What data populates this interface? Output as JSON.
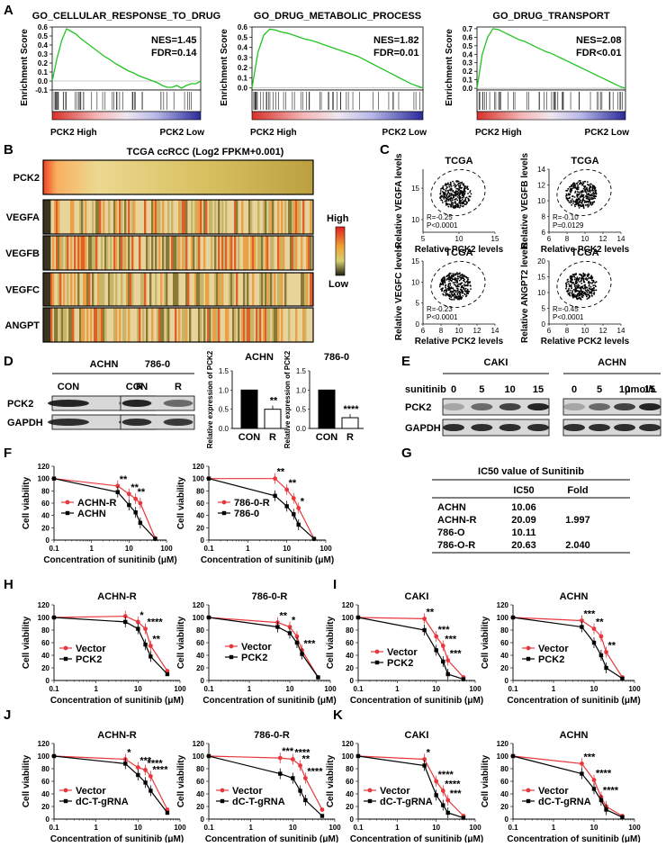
{
  "panel_labels": {
    "A": "A",
    "B": "B",
    "C": "C",
    "D": "D",
    "E": "E",
    "F": "F",
    "G": "G",
    "H": "H",
    "I": "I",
    "J": "J",
    "K": "K"
  },
  "gsea": [
    {
      "title": "GO_CELLULAR_RESPONSE_TO_DRUG",
      "nes": "NES=1.45",
      "fdr": "FDR=0.14",
      "yticks": [
        "0.6",
        "0.5",
        "0.4",
        "0.3",
        "0.2",
        "0.1",
        "0.0",
        "-0.1"
      ],
      "ymax": 0.6,
      "ymin": -0.1,
      "es": [
        0.0,
        0.25,
        0.45,
        0.58,
        0.55,
        0.52,
        0.47,
        0.43,
        0.39,
        0.35,
        0.31,
        0.27,
        0.24,
        0.2,
        0.17,
        0.14,
        0.11,
        0.09,
        0.06,
        0.04,
        0.02,
        0.0,
        -0.02,
        -0.05,
        -0.07,
        -0.07,
        -0.05,
        -0.08,
        -0.05,
        -0.03,
        -0.03,
        0.0
      ],
      "ylabel": "Enrichment Score",
      "high": "PCK2 High",
      "low": "PCK2 Low"
    },
    {
      "title": "GO_DRUG_METABOLIC_PROCESS",
      "nes": "NES=1.82",
      "fdr": "FDR=0.01",
      "yticks": [
        "0.6",
        "0.5",
        "0.4",
        "0.3",
        "0.2",
        "0.1",
        "0.0"
      ],
      "ymax": 0.6,
      "ymin": -0.02,
      "es": [
        0.0,
        0.35,
        0.52,
        0.58,
        0.57,
        0.55,
        0.54,
        0.52,
        0.5,
        0.48,
        0.47,
        0.45,
        0.43,
        0.41,
        0.39,
        0.37,
        0.35,
        0.33,
        0.31,
        0.28,
        0.25,
        0.22,
        0.19,
        0.16,
        0.13,
        0.1,
        0.07,
        0.04,
        0.02,
        0.0
      ],
      "ylabel": "Enrichment Score",
      "high": "PCK2 High",
      "low": "PCK2 Low"
    },
    {
      "title": "GO_DRUG_TRANSPORT",
      "nes": "NES=2.08",
      "fdr": "FDR<0.01",
      "yticks": [
        "0.7",
        "0.6",
        "0.5",
        "0.4",
        "0.3",
        "0.2",
        "0.1",
        "0.0"
      ],
      "ymax": 0.72,
      "ymin": -0.02,
      "es": [
        0.0,
        0.4,
        0.6,
        0.7,
        0.69,
        0.66,
        0.63,
        0.6,
        0.57,
        0.55,
        0.52,
        0.49,
        0.46,
        0.43,
        0.41,
        0.38,
        0.35,
        0.32,
        0.29,
        0.26,
        0.23,
        0.2,
        0.17,
        0.14,
        0.11,
        0.08,
        0.05,
        0.02,
        0.0
      ],
      "ylabel": "Enrichment Score",
      "high": "PCK2 High",
      "low": "PCK2 Low"
    }
  ],
  "heatmap": {
    "title": "TCGA ccRCC (Log2 FPKM+0.001)",
    "rows": [
      "PCK2",
      "VEGFA",
      "VEGFB",
      "VEGFC",
      "ANGPT"
    ],
    "legend_high": "High",
    "legend_low": "Low"
  },
  "scatter": [
    {
      "title": "TCGA",
      "ylabel": "Relative VEGFA levels",
      "xlabel": "Relative PCK2 levels",
      "r": "R=-0.25",
      "p": "P<0.0001",
      "xticks": [
        "5",
        "10",
        "15"
      ],
      "yticks": [
        "10",
        "15"
      ],
      "xrange": [
        5,
        15
      ],
      "yrange": [
        8,
        18
      ]
    },
    {
      "title": "TCGA",
      "ylabel": "Relative VEGFB levels",
      "xlabel": "Relative PCK2 levels",
      "r": "R=-0.10",
      "p": "P=0.0129",
      "xticks": [
        "6",
        "8",
        "10",
        "12",
        "14"
      ],
      "yticks": [
        "6",
        "8",
        "10",
        "12",
        "14"
      ],
      "xrange": [
        6,
        14
      ],
      "yrange": [
        6,
        14
      ]
    },
    {
      "title": "TCGA",
      "ylabel": "Relative VEGFC levels",
      "xlabel": "Relative PCK2 levels",
      "r": "R=-0.23",
      "p": "P<0.0001",
      "xticks": [
        "6",
        "8",
        "10",
        "12",
        "14"
      ],
      "yticks": [
        "0",
        "5",
        "10",
        "15"
      ],
      "xrange": [
        6,
        14
      ],
      "yrange": [
        0,
        15
      ]
    },
    {
      "title": "TCGA",
      "ylabel": "Relative ANGPT2 levels",
      "xlabel": "Relative PCK2 levels",
      "r": "R=-0.45",
      "p": "P<0.0001",
      "xticks": [
        "6",
        "8",
        "10",
        "12",
        "14"
      ],
      "yticks": [
        "0",
        "5",
        "10",
        "15",
        "20"
      ],
      "xrange": [
        6,
        14
      ],
      "yrange": [
        0,
        20
      ]
    }
  ],
  "blot_d": {
    "cells": [
      "ACHN",
      "786-0"
    ],
    "lanes": [
      "CON",
      "R"
    ],
    "proteins": [
      "PCK2",
      "GAPDH"
    ]
  },
  "bars_d": [
    {
      "title": "ACHN",
      "ylabel": "Relative expression of PCK2",
      "yticks": [
        "0.0",
        "0.5",
        "1.0",
        "1.5"
      ],
      "cats": [
        "CON",
        "R"
      ],
      "values": [
        1.0,
        0.5
      ],
      "sig": "**"
    },
    {
      "title": "786-0",
      "ylabel": "Relative expression of PCK2",
      "yticks": [
        "0.0",
        "0.5",
        "1.0",
        "1.5"
      ],
      "cats": [
        "CON",
        "R"
      ],
      "values": [
        1.0,
        0.28
      ],
      "sig": "****"
    }
  ],
  "blot_e": {
    "label": "sunitinib",
    "unit": "μmol/L",
    "cells": [
      "CAKI",
      "ACHN"
    ],
    "doses": [
      "0",
      "5",
      "10",
      "15"
    ],
    "proteins": [
      "PCK2",
      "GAPDH"
    ]
  },
  "ic50": {
    "title": "IC50 value of Sunitinib",
    "headers": [
      "IC50",
      "Fold"
    ],
    "rows": [
      [
        "ACHN",
        "10.06",
        ""
      ],
      [
        "ACHN-R",
        "20.09",
        "1.997"
      ],
      [
        "786-O",
        "10.11",
        ""
      ],
      [
        "786-O-R",
        "20.63",
        "2.040"
      ]
    ]
  },
  "axis": {
    "ylabel": "Cell viability",
    "xlabel": "Concentration of sunitinib (μM)",
    "yticks": [
      "0",
      "20",
      "40",
      "60",
      "80",
      "100",
      "120"
    ],
    "xticks": [
      "0.1",
      "1",
      "10",
      "100"
    ]
  },
  "viability": [
    {
      "id": "F1",
      "title": "",
      "x": [
        0.1,
        5,
        10,
        15,
        20,
        50
      ],
      "series": [
        {
          "name": "ACHN-R",
          "color": "#e8383d",
          "values": [
            100,
            88,
            75,
            67,
            60,
            3
          ]
        },
        {
          "name": "ACHN",
          "color": "#000000",
          "values": [
            100,
            78,
            57,
            45,
            28,
            2
          ]
        }
      ],
      "stars": [
        [
          "**",
          5
        ],
        [
          "**",
          10
        ],
        [
          "**",
          15
        ]
      ]
    },
    {
      "id": "F2",
      "title": "",
      "x": [
        0.1,
        5,
        10,
        15,
        20,
        50
      ],
      "series": [
        {
          "name": "786-0-R",
          "color": "#e8383d",
          "values": [
            100,
            100,
            82,
            68,
            52,
            2
          ]
        },
        {
          "name": "786-0",
          "color": "#000000",
          "values": [
            100,
            72,
            55,
            42,
            25,
            2
          ]
        }
      ],
      "stars": [
        [
          "**",
          5
        ],
        [
          "**",
          10
        ],
        [
          "*",
          20
        ]
      ]
    },
    {
      "id": "H1",
      "title": "ACHN-R",
      "x": [
        0.1,
        5,
        10,
        15,
        20,
        50
      ],
      "series": [
        {
          "name": "Vector",
          "color": "#e8383d",
          "values": [
            100,
            102,
            93,
            82,
            55,
            15
          ]
        },
        {
          "name": "PCK2",
          "color": "#000000",
          "values": [
            100,
            93,
            82,
            57,
            38,
            10
          ]
        }
      ],
      "stars": [
        [
          "*",
          10
        ],
        [
          "****",
          15
        ],
        [
          "**",
          20
        ]
      ]
    },
    {
      "id": "H2",
      "title": "786-0-R",
      "x": [
        0.1,
        5,
        10,
        15,
        20,
        50
      ],
      "series": [
        {
          "name": "Vector",
          "color": "#e8383d",
          "values": [
            100,
            92,
            85,
            70,
            48,
            5
          ]
        },
        {
          "name": "PCK2",
          "color": "#000000",
          "values": [
            100,
            85,
            75,
            60,
            42,
            5
          ]
        }
      ],
      "stars": [
        [
          "**",
          5
        ],
        [
          "*",
          10
        ],
        [
          "***",
          20
        ]
      ]
    },
    {
      "id": "I1",
      "title": "CAKI",
      "x": [
        0.1,
        5,
        10,
        15,
        20,
        50
      ],
      "series": [
        {
          "name": "Vector",
          "color": "#e8383d",
          "values": [
            100,
            98,
            70,
            55,
            32,
            5
          ]
        },
        {
          "name": "PCK2",
          "color": "#000000",
          "values": [
            100,
            80,
            48,
            30,
            10,
            2
          ]
        }
      ],
      "stars": [
        [
          "**",
          5
        ],
        [
          "***",
          10
        ],
        [
          "***",
          15
        ],
        [
          "***",
          20
        ]
      ]
    },
    {
      "id": "I2",
      "title": "ACHN",
      "x": [
        0.1,
        5,
        10,
        15,
        20,
        50
      ],
      "series": [
        {
          "name": "Vector",
          "color": "#e8383d",
          "values": [
            100,
            95,
            82,
            70,
            45,
            5
          ]
        },
        {
          "name": "PCK2",
          "color": "#000000",
          "values": [
            100,
            85,
            60,
            40,
            20,
            3
          ]
        }
      ],
      "stars": [
        [
          "***",
          5
        ],
        [
          "**",
          10
        ],
        [
          "**",
          20
        ]
      ]
    },
    {
      "id": "J1",
      "title": "ACHN-R",
      "x": [
        0.1,
        5,
        10,
        15,
        20,
        50
      ],
      "series": [
        {
          "name": "Vector",
          "color": "#e8383d",
          "values": [
            100,
            95,
            82,
            78,
            68,
            15
          ]
        },
        {
          "name": "dC-T-gRNA",
          "color": "#000000",
          "values": [
            100,
            88,
            70,
            58,
            45,
            10
          ]
        }
      ],
      "stars": [
        [
          "*",
          5
        ],
        [
          "***",
          10
        ],
        [
          "****",
          15
        ],
        [
          "****",
          20
        ]
      ]
    },
    {
      "id": "J2",
      "title": "786-0-R",
      "x": [
        0.1,
        5,
        10,
        15,
        20,
        50
      ],
      "series": [
        {
          "name": "Vector",
          "color": "#e8383d",
          "values": [
            100,
            97,
            95,
            85,
            65,
            15
          ]
        },
        {
          "name": "dC-T-gRNA",
          "color": "#000000",
          "values": [
            100,
            72,
            65,
            45,
            30,
            5
          ]
        }
      ],
      "stars": [
        [
          "***",
          5
        ],
        [
          "****",
          10
        ],
        [
          "**",
          15
        ],
        [
          "****",
          20
        ]
      ]
    },
    {
      "id": "K1",
      "title": "CAKI",
      "x": [
        0.1,
        5,
        10,
        15,
        20,
        50
      ],
      "series": [
        {
          "name": "Vector",
          "color": "#e8383d",
          "values": [
            100,
            95,
            60,
            45,
            30,
            5
          ]
        },
        {
          "name": "dC-T-gRNA",
          "color": "#000000",
          "values": [
            100,
            85,
            38,
            22,
            10,
            2
          ]
        }
      ],
      "stars": [
        [
          "*",
          5
        ],
        [
          "****",
          10
        ],
        [
          "****",
          15
        ],
        [
          "***",
          20
        ]
      ]
    },
    {
      "id": "K2",
      "title": "ACHN",
      "x": [
        0.1,
        5,
        10,
        15,
        20,
        50
      ],
      "series": [
        {
          "name": "Vector",
          "color": "#e8383d",
          "values": [
            100,
            88,
            62,
            35,
            20,
            5
          ]
        },
        {
          "name": "dC-T-gRNA",
          "color": "#000000",
          "values": [
            100,
            72,
            48,
            30,
            15,
            3
          ]
        }
      ],
      "stars": [
        [
          "***",
          5
        ],
        [
          "****",
          10
        ],
        [
          "****",
          15
        ]
      ]
    }
  ]
}
